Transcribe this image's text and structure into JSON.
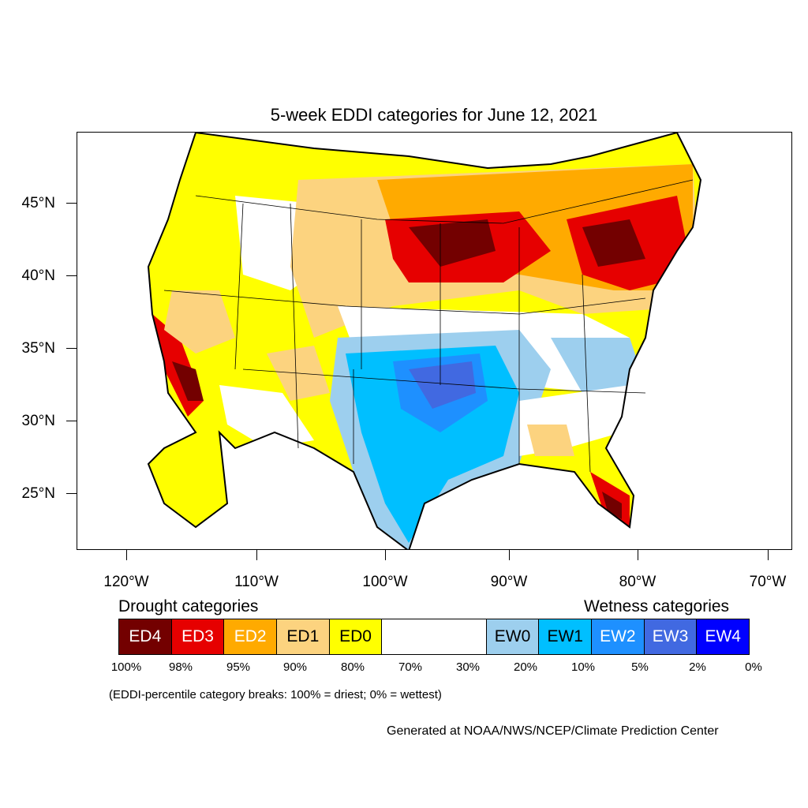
{
  "title": "5-week EDDI categories for June 12, 2021",
  "lat_labels": [
    "45°N",
    "40°N",
    "35°N",
    "30°N",
    "25°N"
  ],
  "lon_labels": [
    "120°W",
    "110°W",
    "100°W",
    "90°W",
    "80°W",
    "70°W"
  ],
  "legend": {
    "drought_heading": "Drought categories",
    "wetness_heading": "Wetness categories",
    "categories": [
      {
        "label": "ED4",
        "color": "#730000",
        "text_color": "#ffffff"
      },
      {
        "label": "ED3",
        "color": "#e60000",
        "text_color": "#ffffff"
      },
      {
        "label": "ED2",
        "color": "#ffaa00",
        "text_color": "#ffffff"
      },
      {
        "label": "ED1",
        "color": "#fcd37f",
        "text_color": "#000000"
      },
      {
        "label": "ED0",
        "color": "#ffff00",
        "text_color": "#000000"
      },
      {
        "label": "",
        "color": "#ffffff",
        "text_color": "#000000"
      },
      {
        "label": "EW0",
        "color": "#9dcfee",
        "text_color": "#000000"
      },
      {
        "label": "EW1",
        "color": "#00bfff",
        "text_color": "#000000"
      },
      {
        "label": "EW2",
        "color": "#1e90ff",
        "text_color": "#ffffff"
      },
      {
        "label": "EW3",
        "color": "#4169e1",
        "text_color": "#ffffff"
      },
      {
        "label": "EW4",
        "color": "#0000ff",
        "text_color": "#ffffff"
      }
    ],
    "percentile_breaks": [
      "100%",
      "98%",
      "95%",
      "90%",
      "80%",
      "70%",
      "30%",
      "20%",
      "10%",
      "5%",
      "2%",
      "0%"
    ]
  },
  "breaks_note": "(EDDI-percentile category breaks: 100% = driest; 0% = wettest)",
  "credit": "Generated at NOAA/NWS/NCEP/Climate Prediction Center"
}
